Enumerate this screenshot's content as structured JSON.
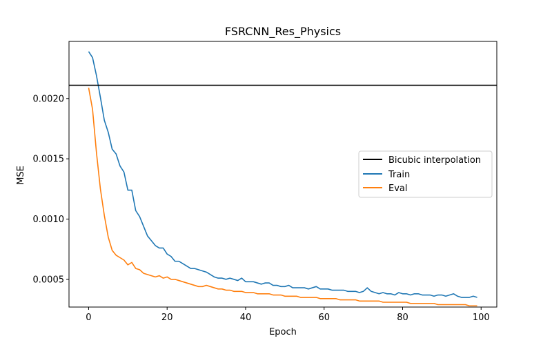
{
  "chart_data": {
    "type": "line",
    "title": "FSRCNN_Res_Physics",
    "xlabel": "Epoch",
    "ylabel": "MSE",
    "xlim": [
      -5,
      104
    ],
    "ylim": [
      0.00027,
      0.002474
    ],
    "xticks": [
      0,
      20,
      40,
      60,
      80,
      100
    ],
    "xtick_labels": [
      "0",
      "20",
      "40",
      "60",
      "80",
      "100"
    ],
    "yticks": [
      0.0005,
      0.001,
      0.0015,
      0.002
    ],
    "ytick_labels": [
      "0.0005",
      "0.0010",
      "0.0015",
      "0.0020"
    ],
    "grid": false,
    "legend_position": "center-right",
    "hlines": [
      {
        "name": "Bicubic interpolation",
        "y": 0.00211,
        "color": "#000000"
      }
    ],
    "series": [
      {
        "name": "Train",
        "color": "#1f77b4",
        "x": [
          0,
          1,
          2,
          3,
          4,
          5,
          6,
          7,
          8,
          9,
          10,
          11,
          12,
          13,
          14,
          15,
          16,
          17,
          18,
          19,
          20,
          21,
          22,
          23,
          24,
          25,
          26,
          27,
          28,
          29,
          30,
          31,
          32,
          33,
          34,
          35,
          36,
          37,
          38,
          39,
          40,
          41,
          42,
          43,
          44,
          45,
          46,
          47,
          48,
          49,
          50,
          51,
          52,
          53,
          54,
          55,
          56,
          57,
          58,
          59,
          60,
          61,
          62,
          63,
          64,
          65,
          66,
          67,
          68,
          69,
          70,
          71,
          72,
          73,
          74,
          75,
          76,
          77,
          78,
          79,
          80,
          81,
          82,
          83,
          84,
          85,
          86,
          87,
          88,
          89,
          90,
          91,
          92,
          93,
          94,
          95,
          96,
          97,
          98,
          99
        ],
        "values": [
          0.00239,
          0.00234,
          0.00219,
          0.00201,
          0.00182,
          0.00172,
          0.00158,
          0.00154,
          0.00144,
          0.00139,
          0.00124,
          0.00124,
          0.00107,
          0.00102,
          0.00094,
          0.00086,
          0.00082,
          0.00078,
          0.00076,
          0.00076,
          0.00071,
          0.00069,
          0.00065,
          0.00065,
          0.00063,
          0.00061,
          0.00059,
          0.00059,
          0.00058,
          0.00057,
          0.00056,
          0.00054,
          0.00052,
          0.00051,
          0.00051,
          0.0005,
          0.00051,
          0.0005,
          0.00049,
          0.00051,
          0.00048,
          0.00048,
          0.00048,
          0.00047,
          0.00046,
          0.00047,
          0.00047,
          0.00045,
          0.00045,
          0.00044,
          0.00044,
          0.00045,
          0.00043,
          0.00043,
          0.00043,
          0.00043,
          0.00042,
          0.00043,
          0.00044,
          0.00042,
          0.00042,
          0.00042,
          0.00041,
          0.00041,
          0.00041,
          0.00041,
          0.0004,
          0.0004,
          0.0004,
          0.00039,
          0.0004,
          0.00043,
          0.0004,
          0.00039,
          0.00038,
          0.00039,
          0.00038,
          0.00038,
          0.00037,
          0.00039,
          0.00038,
          0.00038,
          0.00037,
          0.00038,
          0.00038,
          0.00037,
          0.00037,
          0.00037,
          0.00036,
          0.00037,
          0.00037,
          0.00036,
          0.00037,
          0.00038,
          0.00036,
          0.00035,
          0.00035,
          0.00035,
          0.00036,
          0.00035
        ]
      },
      {
        "name": "Eval",
        "color": "#ff7f0e",
        "x": [
          0,
          1,
          2,
          3,
          4,
          5,
          6,
          7,
          8,
          9,
          10,
          11,
          12,
          13,
          14,
          15,
          16,
          17,
          18,
          19,
          20,
          21,
          22,
          23,
          24,
          25,
          26,
          27,
          28,
          29,
          30,
          31,
          32,
          33,
          34,
          35,
          36,
          37,
          38,
          39,
          40,
          41,
          42,
          43,
          44,
          45,
          46,
          47,
          48,
          49,
          50,
          51,
          52,
          53,
          54,
          55,
          56,
          57,
          58,
          59,
          60,
          61,
          62,
          63,
          64,
          65,
          66,
          67,
          68,
          69,
          70,
          71,
          72,
          73,
          74,
          75,
          76,
          77,
          78,
          79,
          80,
          81,
          82,
          83,
          84,
          85,
          86,
          87,
          88,
          89,
          90,
          91,
          92,
          93,
          94,
          95,
          96,
          97,
          98,
          99
        ],
        "values": [
          0.00209,
          0.00191,
          0.00155,
          0.00125,
          0.00103,
          0.00085,
          0.00074,
          0.0007,
          0.00068,
          0.00066,
          0.00062,
          0.00064,
          0.00059,
          0.00058,
          0.00055,
          0.00054,
          0.00053,
          0.00052,
          0.00053,
          0.00051,
          0.00052,
          0.0005,
          0.0005,
          0.00049,
          0.00048,
          0.00047,
          0.00046,
          0.00045,
          0.00044,
          0.00044,
          0.00045,
          0.00044,
          0.00043,
          0.00042,
          0.00042,
          0.00041,
          0.00041,
          0.0004,
          0.0004,
          0.0004,
          0.00039,
          0.00039,
          0.00039,
          0.00038,
          0.00038,
          0.00038,
          0.00038,
          0.00037,
          0.00037,
          0.00037,
          0.00036,
          0.00036,
          0.00036,
          0.00036,
          0.00035,
          0.00035,
          0.00035,
          0.00035,
          0.00035,
          0.00034,
          0.00034,
          0.00034,
          0.00034,
          0.00034,
          0.00033,
          0.00033,
          0.00033,
          0.00033,
          0.00033,
          0.00032,
          0.00032,
          0.00032,
          0.00032,
          0.00032,
          0.00032,
          0.00031,
          0.00031,
          0.00031,
          0.00031,
          0.00031,
          0.00031,
          0.00031,
          0.0003,
          0.0003,
          0.0003,
          0.0003,
          0.0003,
          0.0003,
          0.0003,
          0.00029,
          0.00029,
          0.00029,
          0.00029,
          0.00029,
          0.00029,
          0.00029,
          0.00029,
          0.00028,
          0.00028,
          0.00028
        ]
      }
    ]
  }
}
